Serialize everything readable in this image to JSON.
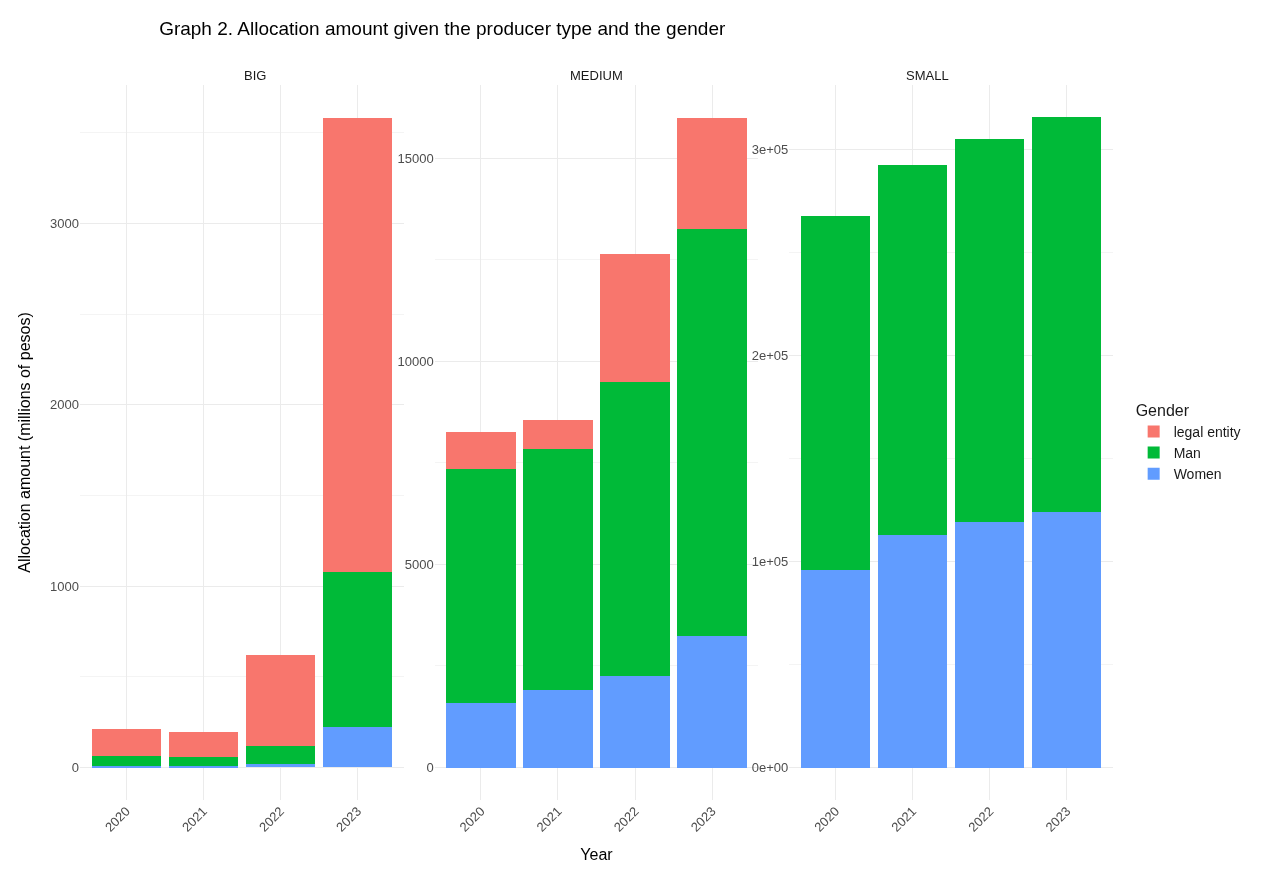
{
  "chart_data": [
    {
      "type": "bar",
      "title": "Graph 2. Allocation amount given the producer type and the gender",
      "subtitle": "BIG",
      "ylabel": "Allocation amount (millions of pesos)",
      "legend_title": "Gender",
      "legend": "right",
      "categories": [
        "2020",
        "2021",
        "2022",
        "2023"
      ],
      "stacked": true,
      "grid": true,
      "ylim": [
        -180,
        3764
      ],
      "yticks": [
        0,
        1000,
        2000,
        3000
      ],
      "series": [
        {
          "name": "Women",
          "color": "#619cff",
          "values": [
            5,
            5,
            20,
            220
          ]
        },
        {
          "name": "Man",
          "color": "#00ba38",
          "values": [
            55,
            50,
            100,
            860
          ]
        },
        {
          "name": "legal entity",
          "color": "#f8766d",
          "values": [
            150,
            140,
            500,
            2500
          ]
        }
      ]
    },
    {
      "type": "bar",
      "subtitle": "MEDIUM",
      "xlabel": "Year",
      "categories": [
        "2020",
        "2021",
        "2022",
        "2023"
      ],
      "stacked": true,
      "grid": true,
      "ylim": [
        -800,
        16804
      ],
      "yticks": [
        0,
        5000,
        10000,
        15000
      ],
      "series": [
        {
          "color": "#619cff",
          "values": [
            1600,
            1900,
            2250,
            3250
          ]
        },
        {
          "color": "#00ba38",
          "values": [
            5750,
            5950,
            7250,
            10000
          ]
        },
        {
          "color": "#f8766d",
          "values": [
            900,
            700,
            3150,
            2750
          ]
        }
      ]
    },
    {
      "type": "bar",
      "subtitle": "SMALL",
      "categories": [
        "2020",
        "2021",
        "2022",
        "2023"
      ],
      "stacked": true,
      "grid": true,
      "ylim": [
        -15770,
        331140
      ],
      "yticks": [
        {
          "value": 0,
          "label": "0e+00"
        },
        {
          "value": 100000,
          "label": "1e+05"
        },
        {
          "value": 200000,
          "label": "2e+05"
        },
        {
          "value": 300000,
          "label": "3e+05"
        }
      ],
      "series": [
        {
          "color": "#619cff",
          "values": [
            95600,
            112800,
            119200,
            123800
          ]
        },
        {
          "color": "#00ba38",
          "values": [
            172200,
            179400,
            185600,
            191600
          ]
        }
      ]
    }
  ]
}
